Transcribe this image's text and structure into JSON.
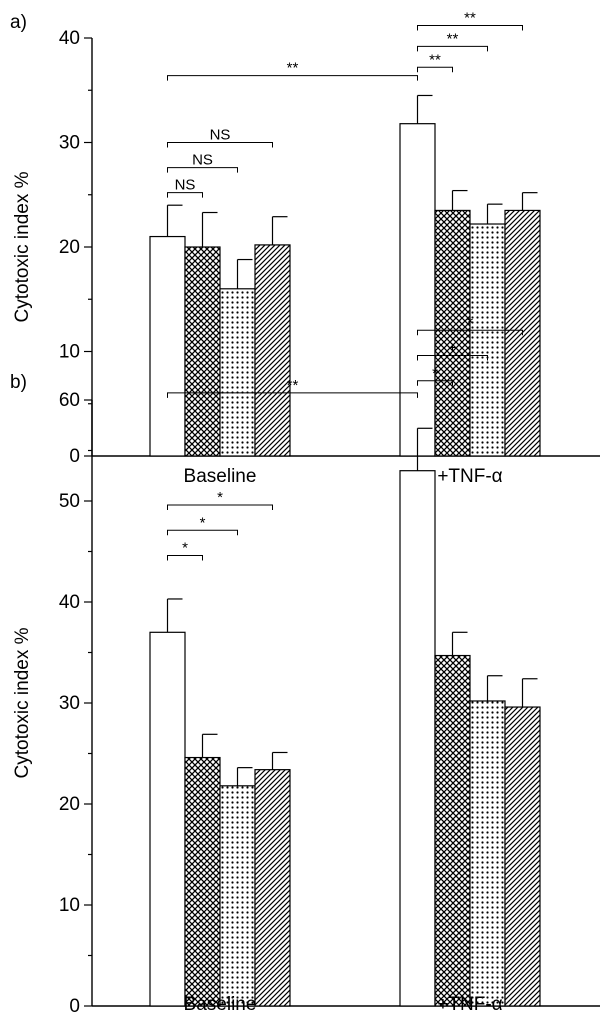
{
  "chart_data": [
    {
      "type": "bar",
      "panel_label": "a)",
      "ylabel": "Cytotoxic index  %",
      "ylim": [
        0,
        40
      ],
      "yticks": [
        0,
        10,
        20,
        30,
        40
      ],
      "categories": [
        "Baseline",
        "+TNF-α"
      ],
      "series": [
        {
          "fill": "white",
          "values": [
            21,
            31.8
          ],
          "errors": [
            3,
            2.7
          ]
        },
        {
          "fill": "crosshatch",
          "values": [
            20,
            23.5
          ],
          "errors": [
            3.3,
            1.9
          ]
        },
        {
          "fill": "dots",
          "values": [
            16,
            22.2
          ],
          "errors": [
            2.8,
            1.9
          ]
        },
        {
          "fill": "diagonal",
          "values": [
            20.2,
            23.5
          ],
          "errors": [
            2.7,
            1.7
          ]
        }
      ],
      "significance": [
        {
          "label": "NS",
          "group": 0,
          "from": 0,
          "to": 1,
          "y": 25.2
        },
        {
          "label": "NS",
          "group": 0,
          "from": 0,
          "to": 2,
          "y": 27.6
        },
        {
          "label": "NS",
          "group": 0,
          "from": 0,
          "to": 3,
          "y": 30.0
        },
        {
          "label": "**",
          "group": 1,
          "from": 0,
          "to": 1,
          "y": 37.2
        },
        {
          "label": "**",
          "group": 1,
          "from": 0,
          "to": 2,
          "y": 39.2
        },
        {
          "label": "**",
          "group": 1,
          "from": 0,
          "to": 3,
          "y": 41.2
        },
        {
          "label": "**",
          "cross": true,
          "y": 36.4
        }
      ]
    },
    {
      "type": "bar",
      "panel_label": "b)",
      "ylabel": "Cytotoxic index  %",
      "ylim": [
        0,
        60
      ],
      "yticks": [
        0,
        10,
        20,
        30,
        40,
        50,
        60
      ],
      "categories": [
        "Baseline",
        "+TNF-α"
      ],
      "series": [
        {
          "fill": "white",
          "values": [
            37,
            53
          ],
          "errors": [
            3.3,
            4.2
          ]
        },
        {
          "fill": "crosshatch",
          "values": [
            24.6,
            34.7
          ],
          "errors": [
            2.3,
            2.3
          ]
        },
        {
          "fill": "dots",
          "values": [
            21.8,
            30.2
          ],
          "errors": [
            1.8,
            2.5
          ]
        },
        {
          "fill": "diagonal",
          "values": [
            23.4,
            29.6
          ],
          "errors": [
            1.7,
            2.8
          ]
        }
      ],
      "significance": [
        {
          "label": "*",
          "group": 0,
          "from": 0,
          "to": 1,
          "y": 44.6
        },
        {
          "label": "*",
          "group": 0,
          "from": 0,
          "to": 2,
          "y": 47.1
        },
        {
          "label": "*",
          "group": 0,
          "from": 0,
          "to": 3,
          "y": 49.6
        },
        {
          "label": "*",
          "group": 1,
          "from": 0,
          "to": 1,
          "y": 61.9
        },
        {
          "label": "+",
          "group": 1,
          "from": 0,
          "to": 2,
          "y": 64.4
        },
        {
          "label": "*",
          "group": 1,
          "from": 0,
          "to": 3,
          "y": 66.9
        },
        {
          "label": "**",
          "cross": true,
          "y": 60.7
        }
      ]
    }
  ]
}
